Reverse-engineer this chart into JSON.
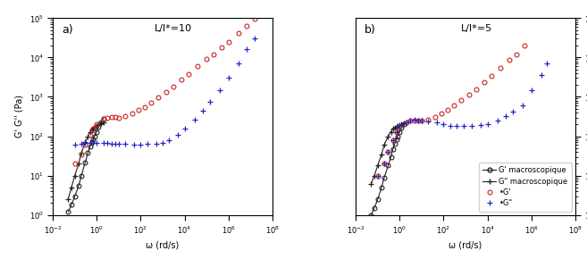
{
  "title_a": "L/l*=10",
  "title_b": "L/l*=5",
  "xlabel": "ω (rd/s)",
  "ylabel": "G' G'' (Pa)",
  "xlim": [
    0.01,
    100000000.0
  ],
  "ylim": [
    1.0,
    100000.0
  ],
  "label_a": "a)",
  "label_b": "b)",
  "colors": {
    "macro_G_prime": "#222222",
    "macro_G_double_prime": "#222222",
    "micro_G_prime": "#cc2222",
    "micro_G_double_prime": "#2222cc"
  },
  "panel_a": {
    "mac_Gp_omega": [
      0.05,
      0.07,
      0.1,
      0.15,
      0.2,
      0.3,
      0.4,
      0.5,
      0.6,
      0.7,
      0.8,
      1.0,
      1.2,
      1.5,
      2.0
    ],
    "mac_Gp_G": [
      1.2,
      1.8,
      3.0,
      5.5,
      10,
      22,
      38,
      55,
      70,
      85,
      100,
      130,
      170,
      220,
      280
    ],
    "mac_Gpp_omega": [
      0.05,
      0.07,
      0.1,
      0.15,
      0.2,
      0.3,
      0.4,
      0.5,
      0.6,
      0.7,
      0.8,
      1.0,
      1.2,
      1.5,
      2.0
    ],
    "mac_Gpp_G": [
      2.5,
      5.0,
      10,
      20,
      38,
      70,
      100,
      130,
      150,
      160,
      170,
      185,
      200,
      210,
      225
    ],
    "micro_Gp_omega_plateau": [
      0.1,
      0.2,
      0.3,
      0.5,
      0.7,
      1.0,
      2.0,
      3.0,
      5.0,
      7.0,
      10.0
    ],
    "micro_Gp_G_plateau": [
      20,
      35,
      60,
      110,
      160,
      200,
      280,
      300,
      310,
      305,
      300
    ],
    "micro_Gp_omega_power": [
      20.0,
      40.0,
      80.0,
      150.0,
      300.0,
      600.0,
      1500.0,
      3000.0,
      7000.0,
      15000.0,
      40000.0,
      100000.0,
      200000.0,
      500000.0,
      1000000.0,
      3000000.0,
      7000000.0,
      15000000.0
    ],
    "micro_Gp_G_power": [
      330,
      380,
      460,
      560,
      720,
      950,
      1350,
      1800,
      2700,
      3800,
      6000,
      9000,
      12000,
      18000,
      25000,
      42000,
      65000,
      95000
    ],
    "micro_Gpp_omega_plateau": [
      0.1,
      0.2,
      0.3,
      0.5,
      0.7,
      1.0,
      2.0,
      3.0,
      5.0,
      7.0,
      10.0,
      20.0,
      50.0,
      100.0,
      200.0,
      500.0,
      1000.0
    ],
    "micro_Gpp_G_plateau": [
      60,
      65,
      68,
      68,
      68,
      68,
      67,
      66,
      65,
      65,
      64,
      63,
      62,
      62,
      63,
      65,
      68
    ],
    "micro_Gpp_omega_power": [
      2000.0,
      5000.0,
      10000.0,
      30000.0,
      70000.0,
      150000.0,
      400000.0,
      1000000.0,
      3000000.0,
      7000000.0,
      15000000.0
    ],
    "micro_Gpp_G_power": [
      80,
      110,
      160,
      270,
      450,
      750,
      1500,
      3000,
      7000,
      16000,
      30000
    ]
  },
  "panel_b": {
    "mac_Gp_omega": [
      0.05,
      0.07,
      0.1,
      0.15,
      0.2,
      0.3,
      0.4,
      0.5,
      0.6,
      0.7,
      0.8,
      1.0,
      1.2,
      1.5
    ],
    "mac_Gp_G": [
      1.0,
      1.5,
      2.5,
      5.0,
      9,
      18,
      30,
      48,
      65,
      82,
      100,
      130,
      165,
      200
    ],
    "mac_Gpp_omega": [
      0.05,
      0.07,
      0.1,
      0.15,
      0.2,
      0.3,
      0.4,
      0.5,
      0.6,
      0.7,
      0.8,
      1.0,
      1.2,
      1.5
    ],
    "mac_Gpp_G": [
      6,
      10,
      18,
      35,
      62,
      100,
      130,
      155,
      168,
      175,
      180,
      190,
      200,
      210
    ],
    "micro_Gp_omega_plateau": [
      0.1,
      0.2,
      0.3,
      0.5,
      0.7,
      1.0,
      2.0,
      3.0,
      5.0,
      7.0,
      10.0
    ],
    "micro_Gp_G_plateau": [
      10,
      20,
      40,
      80,
      130,
      170,
      230,
      250,
      255,
      255,
      250
    ],
    "micro_Gp_omega_power": [
      20.0,
      40.0,
      80.0,
      150.0,
      300.0,
      600.0,
      1500.0,
      3000.0,
      7000.0,
      15000.0,
      40000.0,
      100000.0,
      200000.0,
      500000.0
    ],
    "micro_Gp_G_power": [
      270,
      310,
      380,
      480,
      620,
      820,
      1150,
      1550,
      2400,
      3400,
      5500,
      8500,
      12000,
      20000
    ],
    "micro_Gpp_omega_plateau": [
      0.1,
      0.2,
      0.3,
      0.5,
      0.7,
      1.0,
      2.0,
      3.0,
      5.0,
      7.0,
      10.0,
      20.0,
      50.0,
      100.0
    ],
    "micro_Gpp_G_plateau": [
      10,
      20,
      40,
      80,
      130,
      180,
      230,
      250,
      260,
      255,
      250,
      240,
      220,
      200
    ],
    "micro_Gpp_omega_plateau2": [
      200.0,
      400.0,
      800.0,
      2000.0,
      5000.0,
      10000.0,
      30000.0,
      70000.0,
      150000.0,
      400000.0
    ],
    "micro_Gpp_G_plateau2": [
      185,
      185,
      185,
      185,
      190,
      200,
      250,
      320,
      420,
      620
    ],
    "micro_Gpp_omega_power": [
      1000000.0,
      3000000.0,
      5000000.0
    ],
    "micro_Gpp_G_power": [
      1500,
      3500,
      7000
    ]
  }
}
